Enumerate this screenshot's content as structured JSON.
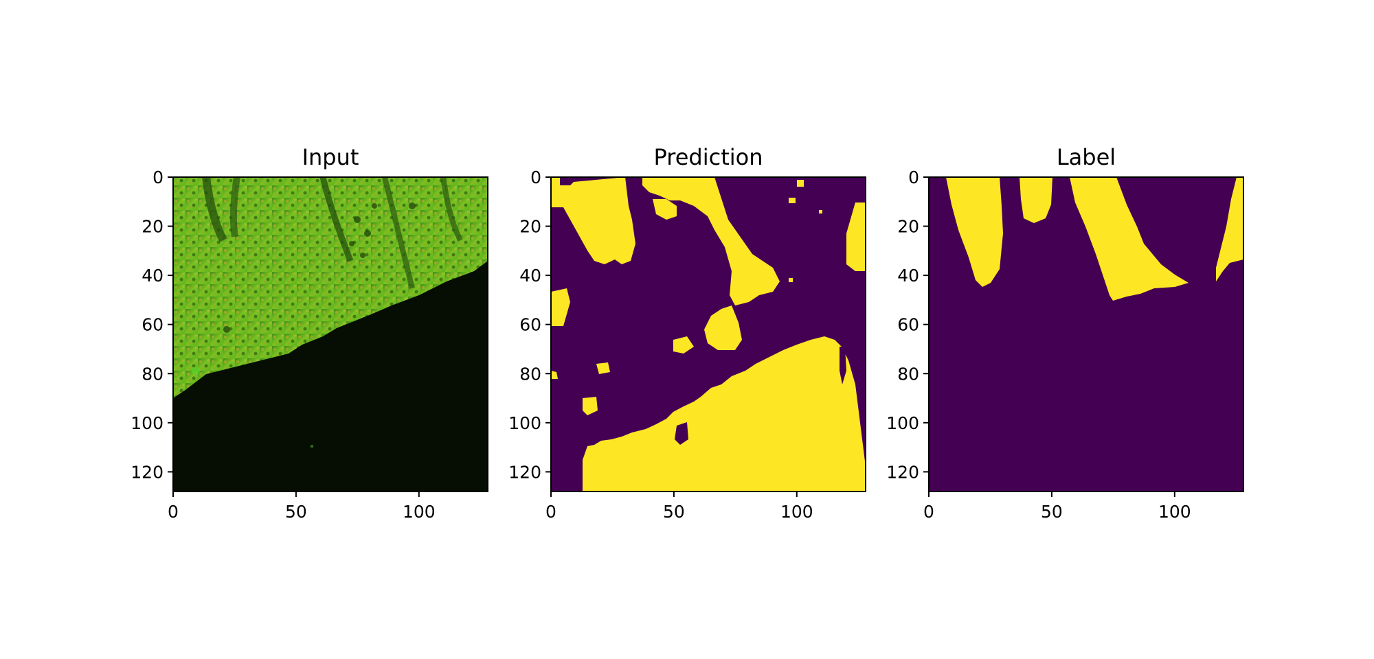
{
  "chart_data": [
    {
      "type": "heatmap",
      "title": "Input",
      "xlabel": "",
      "ylabel": "",
      "xlim": [
        0,
        128
      ],
      "ylim": [
        128,
        0
      ],
      "x_ticks": [
        "0",
        "50",
        "100"
      ],
      "y_ticks": [
        "0",
        "20",
        "40",
        "60",
        "80",
        "100",
        "120"
      ],
      "grid": false,
      "colormap": "rgb",
      "description_colors": {
        "tissue": "#6fbf1f",
        "tissue_dark": "#2e6b12",
        "background": "#060d02"
      },
      "boundary_row_by_x": {
        "x": [
          0,
          20,
          40,
          60,
          80,
          100,
          120,
          128
        ],
        "y": [
          90,
          83,
          78,
          70,
          62,
          52,
          40,
          35
        ]
      }
    },
    {
      "type": "heatmap",
      "title": "Prediction",
      "xlabel": "",
      "ylabel": "",
      "xlim": [
        0,
        128
      ],
      "ylim": [
        128,
        0
      ],
      "x_ticks": [
        "0",
        "50",
        "100"
      ],
      "y_ticks": [
        "0",
        "20",
        "40",
        "60",
        "80",
        "100",
        "120"
      ],
      "grid": false,
      "colormap": "viridis-binary",
      "class_colors": {
        "0": "#440154",
        "1": "#fde725"
      }
    },
    {
      "type": "heatmap",
      "title": "Label",
      "xlabel": "",
      "ylabel": "",
      "xlim": [
        0,
        128
      ],
      "ylim": [
        128,
        0
      ],
      "x_ticks": [
        "0",
        "50",
        "100"
      ],
      "y_ticks": [
        "0",
        "20",
        "40",
        "60",
        "80",
        "100",
        "120"
      ],
      "grid": false,
      "colormap": "viridis-binary",
      "class_colors": {
        "0": "#440154",
        "1": "#fde725"
      }
    }
  ]
}
